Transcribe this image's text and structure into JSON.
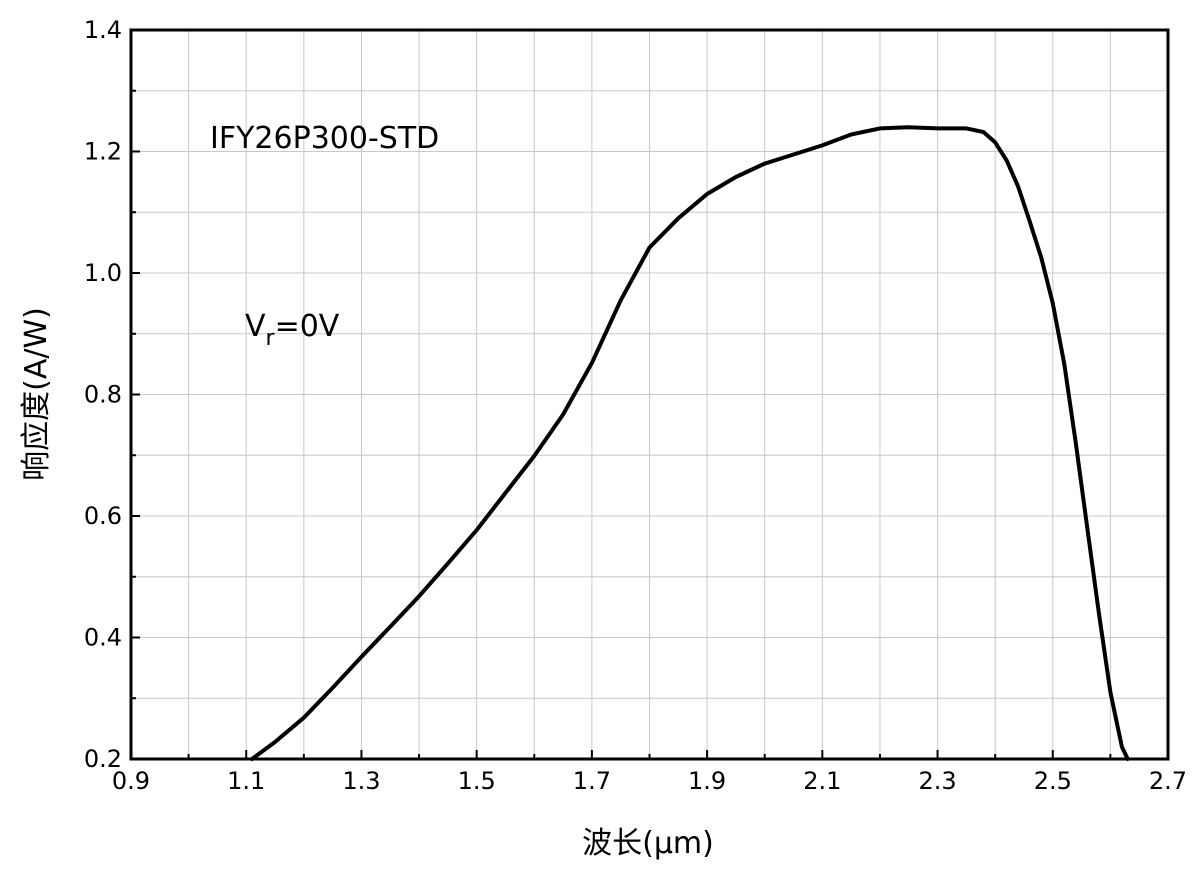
{
  "chart_data": {
    "type": "line",
    "xlabel": "波长(μm)",
    "ylabel": "响应度(A/W)",
    "xlim": [
      0.9,
      2.7
    ],
    "ylim": [
      0.2,
      1.4
    ],
    "xticks": [
      "0.9",
      "1.1",
      "1.3",
      "1.5",
      "1.7",
      "1.9",
      "2.1",
      "2.3",
      "2.5",
      "2.7"
    ],
    "yticks": [
      "0.2",
      "0.4",
      "0.6",
      "0.8",
      "1.0",
      "1.2",
      "1.4"
    ],
    "grid": true,
    "annotations": {
      "model": "IFY26P300-STD",
      "bias_main": "V",
      "bias_sub": "r",
      "bias_rest": "=0V"
    },
    "series": [
      {
        "color": "#000000",
        "x": [
          1.11,
          1.15,
          1.2,
          1.25,
          1.3,
          1.35,
          1.4,
          1.45,
          1.5,
          1.55,
          1.6,
          1.65,
          1.7,
          1.75,
          1.8,
          1.85,
          1.9,
          1.95,
          2.0,
          2.05,
          2.1,
          2.15,
          2.2,
          2.25,
          2.3,
          2.35,
          2.38,
          2.4,
          2.42,
          2.44,
          2.46,
          2.48,
          2.5,
          2.52,
          2.54,
          2.56,
          2.58,
          2.6,
          2.62,
          2.63
        ],
        "y": [
          0.2,
          0.228,
          0.268,
          0.317,
          0.368,
          0.418,
          0.468,
          0.522,
          0.577,
          0.638,
          0.699,
          0.767,
          0.852,
          0.955,
          1.042,
          1.09,
          1.13,
          1.158,
          1.18,
          1.195,
          1.21,
          1.228,
          1.238,
          1.24,
          1.238,
          1.238,
          1.232,
          1.215,
          1.185,
          1.142,
          1.085,
          1.025,
          0.95,
          0.85,
          0.72,
          0.58,
          0.44,
          0.31,
          0.22,
          0.2
        ]
      }
    ]
  }
}
